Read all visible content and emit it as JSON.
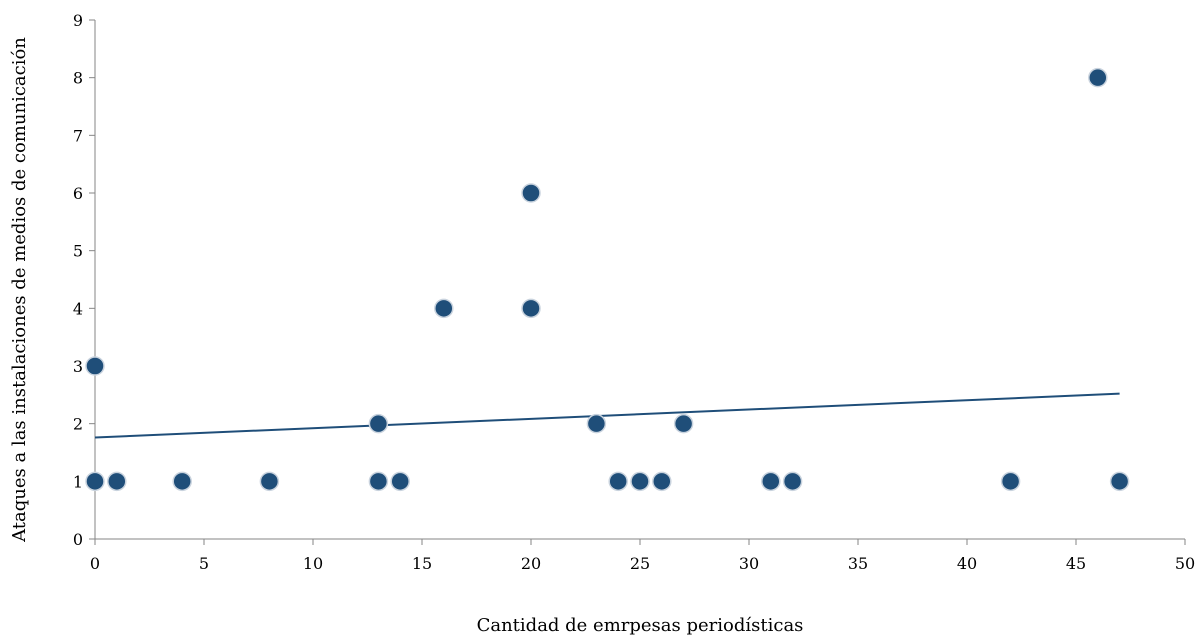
{
  "chart_data": {
    "type": "scatter",
    "title": "",
    "xlabel": "Cantidad de emrpesas periodísticas",
    "ylabel": "Ataques a las instalaciones de medios de comunicación",
    "xlim": [
      0,
      50
    ],
    "ylim": [
      0,
      9
    ],
    "xticks": [
      "0",
      "5",
      "10",
      "15",
      "20",
      "25",
      "30",
      "35",
      "40",
      "45",
      "50"
    ],
    "yticks": [
      "0",
      "1",
      "2",
      "3",
      "4",
      "5",
      "6",
      "7",
      "8",
      "9"
    ],
    "grid": false,
    "legend": "none",
    "marker_color": "#1f4e79",
    "trendline_color": "#1f4e79",
    "points": [
      {
        "x": 0,
        "y": 1
      },
      {
        "x": 0,
        "y": 3
      },
      {
        "x": 1,
        "y": 1
      },
      {
        "x": 4,
        "y": 1
      },
      {
        "x": 8,
        "y": 1
      },
      {
        "x": 13,
        "y": 1
      },
      {
        "x": 13,
        "y": 2
      },
      {
        "x": 14,
        "y": 1
      },
      {
        "x": 16,
        "y": 4
      },
      {
        "x": 20,
        "y": 4
      },
      {
        "x": 20,
        "y": 6
      },
      {
        "x": 23,
        "y": 2
      },
      {
        "x": 24,
        "y": 1
      },
      {
        "x": 25,
        "y": 1
      },
      {
        "x": 26,
        "y": 1
      },
      {
        "x": 27,
        "y": 2
      },
      {
        "x": 31,
        "y": 1
      },
      {
        "x": 32,
        "y": 1
      },
      {
        "x": 42,
        "y": 1
      },
      {
        "x": 46,
        "y": 8
      },
      {
        "x": 47,
        "y": 1
      }
    ],
    "trendline": {
      "type": "linear",
      "x": [
        0,
        47
      ],
      "y": [
        1.76,
        2.52
      ]
    }
  }
}
